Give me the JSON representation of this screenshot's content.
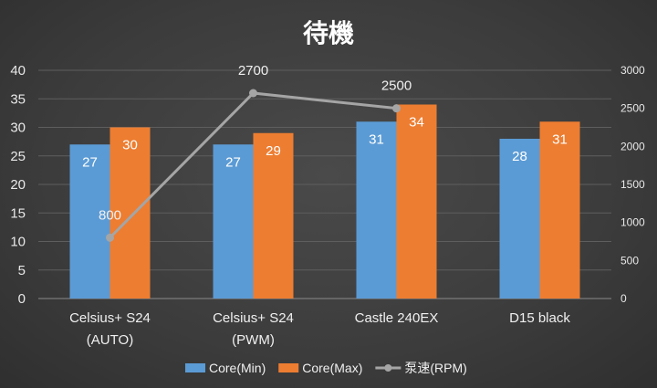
{
  "chart_data": {
    "type": "bar",
    "title": "待機",
    "categories": [
      [
        "Celsius+ S24",
        "(AUTO)"
      ],
      [
        "Celsius+ S24",
        "(PWM)"
      ],
      [
        "Castle 240EX"
      ],
      [
        "D15 black"
      ]
    ],
    "series": [
      {
        "name": "Core(Min)",
        "type": "bar",
        "axis": "left",
        "color": "#5b9bd5",
        "values": [
          27,
          27,
          31,
          28
        ]
      },
      {
        "name": "Core(Max)",
        "type": "bar",
        "axis": "left",
        "color": "#ed7d31",
        "values": [
          30,
          29,
          34,
          31
        ]
      },
      {
        "name": "泵速(RPM)",
        "type": "line",
        "axis": "right",
        "color": "#a5a5a5",
        "values": [
          800,
          2700,
          2500,
          null
        ]
      }
    ],
    "y_left": {
      "min": 0,
      "max": 40,
      "ticks": [
        0,
        5,
        10,
        15,
        20,
        25,
        30,
        35,
        40
      ]
    },
    "y_right": {
      "min": 0,
      "max": 3000,
      "ticks": [
        0,
        500,
        1000,
        1500,
        2000,
        2500,
        3000
      ]
    },
    "grid": true,
    "legend": "bottom"
  }
}
